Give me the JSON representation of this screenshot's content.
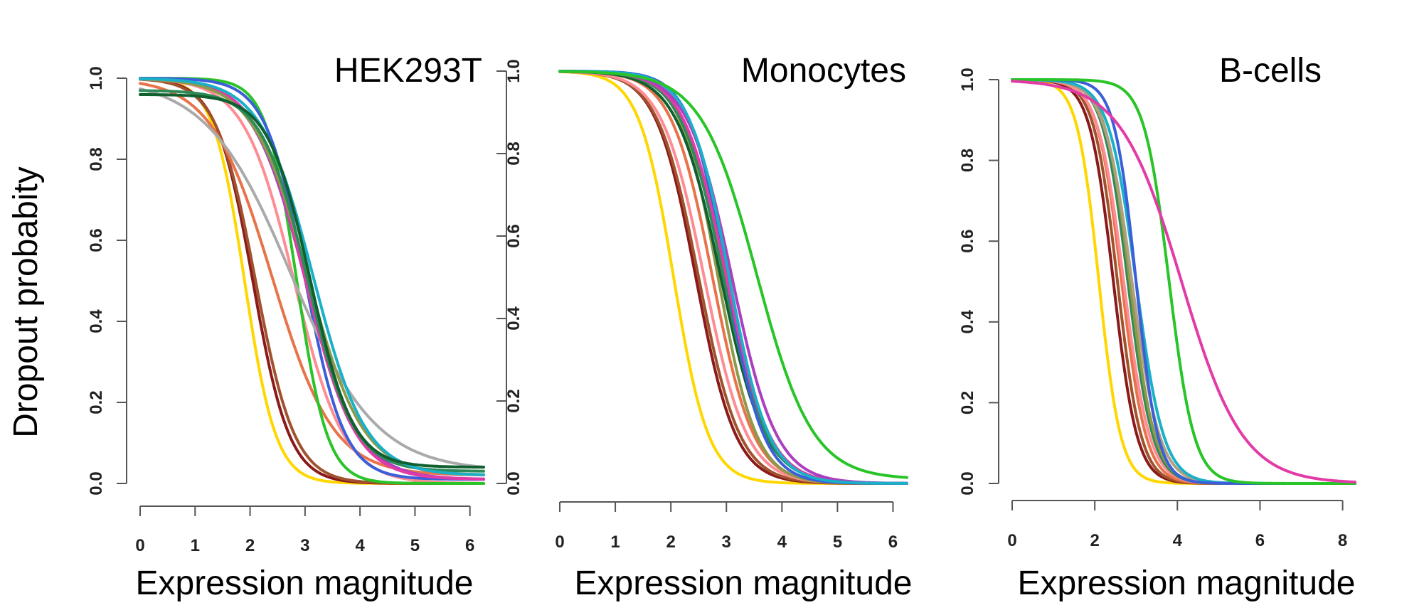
{
  "figure": {
    "ylabel": "Dropout probabity"
  },
  "palette": [
    "#ffd700",
    "#8b1a1a",
    "#a0522d",
    "#e8734a",
    "#ff8c94",
    "#f0609e",
    "#e23ba7",
    "#ab3fbf",
    "#3a5fd9",
    "#1ab0c8",
    "#2e8b57",
    "#8c9a4a",
    "#b0a080",
    "#aaaaaa",
    "#28c428",
    "#0f5f2f"
  ],
  "chart_data": [
    {
      "type": "line",
      "title": "HEK293T",
      "xlabel": "Expression magnitude",
      "ylabel": "Dropout probabity",
      "xlim": [
        0,
        6.25
      ],
      "ylim": [
        0,
        1
      ],
      "xticks": [
        "0",
        "1",
        "2",
        "3",
        "4",
        "5",
        "6"
      ],
      "yticks": [
        "0.0",
        "0.2",
        "0.4",
        "0.6",
        "0.8",
        "1.0"
      ],
      "series": [
        {
          "color": "#ffd700",
          "midpoint": 1.9,
          "slope": 3.5,
          "top": 1.0,
          "bottom": 0.0
        },
        {
          "color": "#8b1a1a",
          "midpoint": 2.05,
          "slope": 3.0,
          "top": 1.0,
          "bottom": 0.0
        },
        {
          "color": "#a0522d",
          "midpoint": 2.1,
          "slope": 2.8,
          "top": 1.0,
          "bottom": 0.0
        },
        {
          "color": "#e8734a",
          "midpoint": 2.4,
          "slope": 1.8,
          "top": 1.0,
          "bottom": 0.02
        },
        {
          "color": "#ff8c94",
          "midpoint": 2.8,
          "slope": 2.2,
          "top": 1.0,
          "bottom": 0.0
        },
        {
          "color": "#28c428",
          "midpoint": 2.85,
          "slope": 3.6,
          "top": 1.0,
          "bottom": 0.0
        },
        {
          "color": "#3a5fd9",
          "midpoint": 3.0,
          "slope": 2.8,
          "top": 1.0,
          "bottom": 0.01
        },
        {
          "color": "#aaaaaa",
          "midpoint": 2.75,
          "slope": 1.3,
          "top": 1.0,
          "bottom": 0.03
        },
        {
          "color": "#ab3fbf",
          "midpoint": 3.0,
          "slope": 2.1,
          "top": 1.0,
          "bottom": 0.01
        },
        {
          "color": "#e23ba7",
          "midpoint": 3.0,
          "slope": 2.2,
          "top": 1.0,
          "bottom": 0.01
        },
        {
          "color": "#8c9a4a",
          "midpoint": 3.05,
          "slope": 2.0,
          "top": 1.0,
          "bottom": 0.02
        },
        {
          "color": "#2e8b57",
          "midpoint": 3.05,
          "slope": 2.4,
          "top": 0.97,
          "bottom": 0.03
        },
        {
          "color": "#1ab0c8",
          "midpoint": 3.15,
          "slope": 2.1,
          "top": 1.0,
          "bottom": 0.02
        },
        {
          "color": "#0f5f2f",
          "midpoint": 3.1,
          "slope": 2.6,
          "top": 0.96,
          "bottom": 0.04
        }
      ]
    },
    {
      "type": "line",
      "title": "Monocytes",
      "xlabel": "Expression magnitude",
      "ylabel": "",
      "xlim": [
        0,
        6.25
      ],
      "ylim": [
        0,
        1
      ],
      "xticks": [
        "0",
        "1",
        "2",
        "3",
        "4",
        "5",
        "6"
      ],
      "yticks": [
        "0.0",
        "0.2",
        "0.4",
        "0.6",
        "0.8",
        "1.0"
      ],
      "series": [
        {
          "color": "#ffd700",
          "midpoint": 2.05,
          "slope": 3.2,
          "top": 1.0,
          "bottom": 0.0
        },
        {
          "color": "#8b1a1a",
          "midpoint": 2.45,
          "slope": 2.8,
          "top": 1.0,
          "bottom": 0.0
        },
        {
          "color": "#a0522d",
          "midpoint": 2.5,
          "slope": 2.7,
          "top": 1.0,
          "bottom": 0.0
        },
        {
          "color": "#ff8c94",
          "midpoint": 2.6,
          "slope": 2.6,
          "top": 1.0,
          "bottom": 0.0
        },
        {
          "color": "#e8734a",
          "midpoint": 2.75,
          "slope": 2.7,
          "top": 1.0,
          "bottom": 0.0
        },
        {
          "color": "#8c9a4a",
          "midpoint": 2.85,
          "slope": 2.9,
          "top": 1.0,
          "bottom": 0.0
        },
        {
          "color": "#0f5f2f",
          "midpoint": 2.9,
          "slope": 2.5,
          "top": 1.0,
          "bottom": 0.0
        },
        {
          "color": "#2e8b57",
          "midpoint": 2.95,
          "slope": 2.6,
          "top": 1.0,
          "bottom": 0.0
        },
        {
          "color": "#3a5fd9",
          "midpoint": 3.0,
          "slope": 3.0,
          "top": 1.0,
          "bottom": 0.0
        },
        {
          "color": "#e23ba7",
          "midpoint": 3.0,
          "slope": 2.6,
          "top": 1.0,
          "bottom": 0.0
        },
        {
          "color": "#ab3fbf",
          "midpoint": 3.1,
          "slope": 2.5,
          "top": 1.0,
          "bottom": 0.0
        },
        {
          "color": "#1ab0c8",
          "midpoint": 3.05,
          "slope": 2.8,
          "top": 1.0,
          "bottom": 0.0
        },
        {
          "color": "#28c428",
          "midpoint": 3.55,
          "slope": 2.0,
          "top": 1.0,
          "bottom": 0.01
        }
      ]
    },
    {
      "type": "line",
      "title": "B-cells",
      "xlabel": "Expression magnitude",
      "ylabel": "",
      "xlim": [
        0,
        8.3
      ],
      "ylim": [
        0,
        1
      ],
      "xticks": [
        "0",
        "2",
        "4",
        "6",
        "8"
      ],
      "yticks": [
        "0.0",
        "0.2",
        "0.4",
        "0.6",
        "0.8",
        "1.0"
      ],
      "series": [
        {
          "color": "#ffd700",
          "midpoint": 2.1,
          "slope": 3.8,
          "top": 1.0,
          "bottom": 0.0
        },
        {
          "color": "#8b1a1a",
          "midpoint": 2.45,
          "slope": 3.5,
          "top": 1.0,
          "bottom": 0.0
        },
        {
          "color": "#a0522d",
          "midpoint": 2.55,
          "slope": 3.5,
          "top": 1.0,
          "bottom": 0.0
        },
        {
          "color": "#e8734a",
          "midpoint": 2.65,
          "slope": 3.4,
          "top": 1.0,
          "bottom": 0.0
        },
        {
          "color": "#ff8c94",
          "midpoint": 2.7,
          "slope": 3.2,
          "top": 1.0,
          "bottom": 0.0
        },
        {
          "color": "#2e8b57",
          "midpoint": 2.8,
          "slope": 3.3,
          "top": 1.0,
          "bottom": 0.0
        },
        {
          "color": "#8c9a4a",
          "midpoint": 2.85,
          "slope": 3.3,
          "top": 1.0,
          "bottom": 0.0
        },
        {
          "color": "#b0a080",
          "midpoint": 2.9,
          "slope": 3.0,
          "top": 1.0,
          "bottom": 0.0
        },
        {
          "color": "#1ab0c8",
          "midpoint": 3.0,
          "slope": 3.0,
          "top": 1.0,
          "bottom": 0.0
        },
        {
          "color": "#3a5fd9",
          "midpoint": 3.0,
          "slope": 3.8,
          "top": 1.0,
          "bottom": 0.0
        },
        {
          "color": "#28c428",
          "midpoint": 3.8,
          "slope": 3.3,
          "top": 1.0,
          "bottom": 0.0
        },
        {
          "color": "#e23ba7",
          "midpoint": 4.1,
          "slope": 1.35,
          "top": 1.0,
          "bottom": 0.0
        }
      ]
    }
  ]
}
